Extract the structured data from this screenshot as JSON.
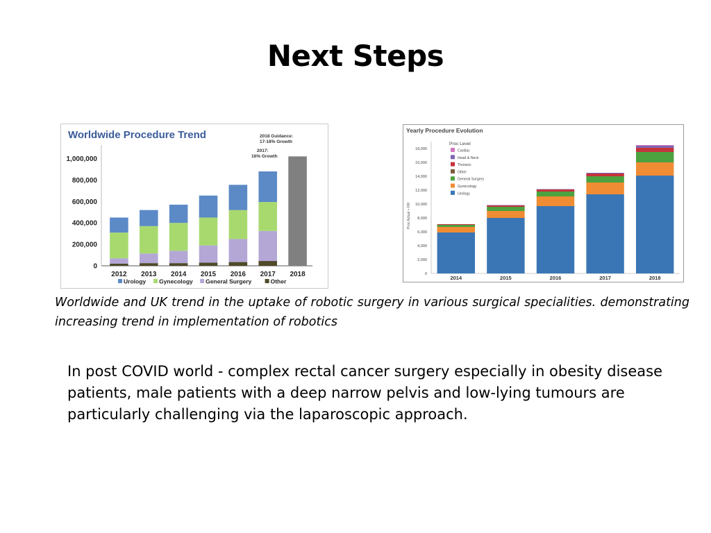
{
  "slide": {
    "title": "Next Steps",
    "caption": "Worldwide and UK trend in the uptake of robotic surgery in various surgical specialities. demonstrating increasing trend in implementation of robotics",
    "body": "In post COVID world - complex rectal cancer surgery especially in obesity disease patients, male patients with a deep narrow pelvis and low-lying tumours are particularly challenging via the laparoscopic approach."
  },
  "chart_data": [
    {
      "type": "bar",
      "stacked": true,
      "title": "Worldwide Procedure Trend",
      "categories": [
        "2012",
        "2013",
        "2014",
        "2015",
        "2016",
        "2017",
        "2018"
      ],
      "yticks": [
        "0",
        "200,000",
        "400,000",
        "600,000",
        "800,000",
        "1,000,000"
      ],
      "ylim": [
        0,
        1100000
      ],
      "series": [
        {
          "name": "Other",
          "color": "#4f4a2a",
          "values": [
            20000,
            25000,
            25000,
            30000,
            35000,
            45000,
            0
          ]
        },
        {
          "name": "General Surgery",
          "color": "#b4a7d6",
          "values": [
            50000,
            90000,
            115000,
            160000,
            215000,
            280000,
            0
          ]
        },
        {
          "name": "Gynecology",
          "color": "#a8d96f",
          "values": [
            240000,
            255000,
            260000,
            260000,
            270000,
            270000,
            0
          ]
        },
        {
          "name": "Urology",
          "color": "#5b8ac6",
          "values": [
            140000,
            150000,
            170000,
            205000,
            235000,
            285000,
            0
          ]
        },
        {
          "name": "",
          "color": "#808080",
          "values": [
            0,
            0,
            0,
            0,
            0,
            0,
            1020000
          ]
        }
      ],
      "legend_order": [
        "Urology",
        "Gynecology",
        "General Surgery",
        "Other"
      ],
      "annotations": {
        "a2017_line1": "2017:",
        "a2017_line2": "16% Growth",
        "a2018_line1": "2018 Guidance:",
        "a2018_line2": "17-18% Growth"
      }
    },
    {
      "type": "bar",
      "stacked": true,
      "title": "Yearly Procedure Evolution",
      "categories": [
        "2014",
        "2015",
        "2016",
        "2017",
        "2018"
      ],
      "yticks": [
        "0",
        "2,000",
        "4,000",
        "6,000",
        "8,000",
        "10,000",
        "12,000",
        "14,000",
        "16,000",
        "18,000"
      ],
      "ylim": [
        0,
        19000
      ],
      "ylabel": "Proc Actual + RR",
      "legend_title": "Proc Level",
      "series": [
        {
          "name": "Urology",
          "color": "#3a76b5",
          "values": [
            5900,
            8000,
            9700,
            11400,
            14100
          ]
        },
        {
          "name": "Gynecology",
          "color": "#f08c33",
          "values": [
            800,
            1000,
            1400,
            1700,
            1900
          ]
        },
        {
          "name": "General Surgery",
          "color": "#4ca23f",
          "values": [
            300,
            600,
            700,
            900,
            1500
          ]
        },
        {
          "name": "Other",
          "color": "#7b5a3a",
          "values": [
            0,
            0,
            0,
            0,
            0
          ]
        },
        {
          "name": "Thoracic",
          "color": "#c4343c",
          "values": [
            100,
            200,
            300,
            400,
            600
          ]
        },
        {
          "name": "Head & Neck",
          "color": "#8166b3",
          "values": [
            0,
            50,
            50,
            100,
            300
          ]
        },
        {
          "name": "Cardiac",
          "color": "#d276be",
          "values": [
            0,
            0,
            0,
            0,
            100
          ]
        }
      ],
      "legend_order": [
        "Cardiac",
        "Head & Neck",
        "Thoracic",
        "Other",
        "General Surgery",
        "Gynecology",
        "Urology"
      ]
    }
  ]
}
